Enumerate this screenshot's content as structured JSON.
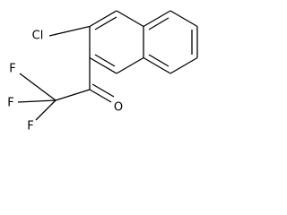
{
  "atoms": [
    {
      "label": "Cl"
    },
    {
      "label": "F"
    },
    {
      "label": "F"
    },
    {
      "label": "F"
    },
    {
      "label": "O"
    }
  ]
}
